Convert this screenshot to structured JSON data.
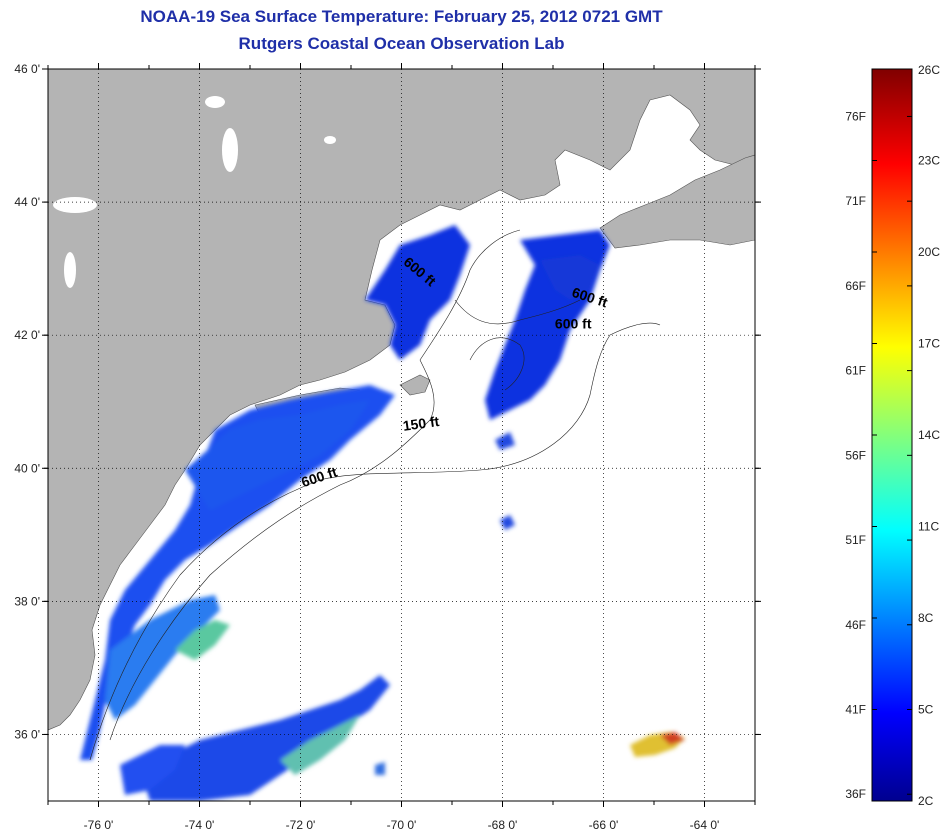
{
  "header": {
    "title": "NOAA-19 Sea Surface Temperature:  February 25, 2012 0721 GMT",
    "subtitle": "Rutgers Coastal Ocean Observation Lab"
  },
  "map": {
    "lat_range": [
      35,
      46
    ],
    "lon_range": [
      -77,
      -63
    ],
    "lat_ticks": [
      "46 0'",
      "44 0'",
      "42 0'",
      "40 0'",
      "38 0'",
      "36 0'"
    ],
    "lat_tick_values": [
      46,
      44,
      42,
      40,
      38,
      36
    ],
    "lon_ticks": [
      "-76 0'",
      "-74 0'",
      "-72 0'",
      "-70 0'",
      "-68 0'",
      "-66 0'",
      "-64 0'"
    ],
    "lon_tick_values": [
      -76,
      -74,
      -72,
      -70,
      -68,
      -66,
      -64
    ],
    "grid": "dotted",
    "land_color": "#b4b4b4",
    "no_data_color": "#ffffff",
    "contour_labels": [
      {
        "text": "150 ft",
        "lon": -69.6,
        "lat": 40.6,
        "angle": -8
      },
      {
        "text": "600 ft",
        "lon": -71.6,
        "lat": 39.8,
        "angle": -18
      },
      {
        "text": "600 ft",
        "lon": -66.3,
        "lat": 42.5,
        "angle": 18
      },
      {
        "text": "600 ft",
        "lon": -66.6,
        "lat": 42.1,
        "angle": 0
      },
      {
        "text": "600 ft",
        "lon": -69.7,
        "lat": 42.9,
        "angle": 40
      }
    ]
  },
  "colorbar": {
    "min_c": 2,
    "max_c": 26,
    "celsius_labels": [
      "26C",
      "23C",
      "20C",
      "17C",
      "14C",
      "11C",
      "8C",
      "5C",
      "2C"
    ],
    "celsius_values": [
      26,
      23,
      20,
      17,
      14,
      11,
      8,
      5,
      2
    ],
    "fahrenheit_labels": [
      "76F",
      "71F",
      "66F",
      "61F",
      "56F",
      "51F",
      "46F",
      "41F",
      "36F"
    ],
    "fahrenheit_values": [
      76,
      71,
      66,
      61,
      56,
      51,
      46,
      41,
      36
    ]
  }
}
